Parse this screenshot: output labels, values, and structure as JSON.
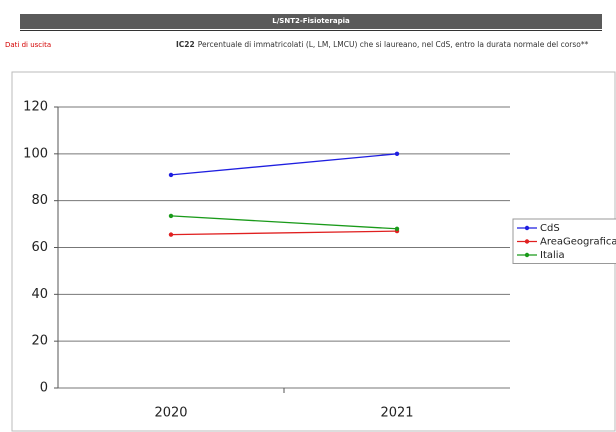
{
  "header": {
    "title": "L/SNT2-Fisioterapia",
    "section": "Dati di uscita",
    "indicator_code": "IC22",
    "indicator_text": "Percentuale di immatricolati (L, LM, LMCU) che si laureano, nel CdS, entro la durata normale del corso**"
  },
  "chart_data": {
    "type": "line",
    "categories": [
      "2020",
      "2021"
    ],
    "series": [
      {
        "name": "CdS",
        "color": "#1f1fe0",
        "values": [
          91,
          100
        ]
      },
      {
        "name": "AreaGeografica",
        "color": "#e02020",
        "values": [
          65.5,
          67
        ]
      },
      {
        "name": "Italia",
        "color": "#1a9a1a",
        "values": [
          73.5,
          68
        ]
      }
    ],
    "ylim": [
      0,
      120
    ],
    "yticks": [
      0,
      20,
      40,
      60,
      80,
      100,
      120
    ],
    "grid": true,
    "legend": "right"
  }
}
